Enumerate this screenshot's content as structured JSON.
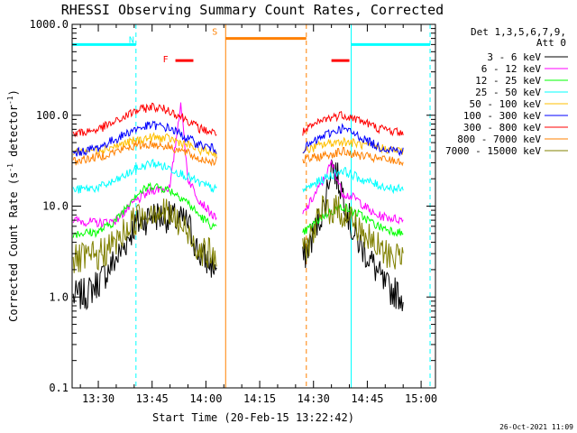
{
  "chart_data": {
    "type": "line",
    "title": "RHESSI Observing Summary Count Rates, Corrected",
    "xlabel": "Start Time (20-Feb-15 13:22:42)",
    "ylabel_parts": {
      "main": "Corrected Count Rate (s",
      "sup1": "-1",
      "mid": " detector",
      "sup2": "-1",
      "end": ")"
    },
    "y_scale": "log",
    "ylim": [
      0.1,
      1000.0
    ],
    "xlim": [
      "13:22:42",
      "15:04:00"
    ],
    "x_ticks": [
      "13:30",
      "13:45",
      "14:00",
      "14:15",
      "14:30",
      "14:45",
      "15:00"
    ],
    "y_ticks": [
      "0.1",
      "1.0",
      "10.0",
      "100.0",
      "1000.0"
    ],
    "legend": {
      "placement": "top-right",
      "header_line1": "Det 1,3,5,6,7,9,",
      "header_line2": "Att 0"
    },
    "series": [
      {
        "name": "3 - 6 keV",
        "color": "#000000",
        "points": [
          [
            "13:23",
            1.0
          ],
          [
            "13:27",
            1.1
          ],
          [
            "13:31",
            1.6
          ],
          [
            "13:36",
            3.0
          ],
          [
            "13:40",
            6.0
          ],
          [
            "13:45",
            8.0
          ],
          [
            "13:50",
            7.5
          ],
          [
            "13:55",
            6.5
          ],
          [
            "13:58",
            3.0
          ],
          [
            "14:03",
            2.0
          ],
          [
            "14:27",
            2.5
          ],
          [
            "14:33",
            10.0
          ],
          [
            "14:35",
            30.0
          ],
          [
            "14:38",
            15.0
          ],
          [
            "14:41",
            5.0
          ],
          [
            "14:46",
            2.5
          ],
          [
            "14:50",
            1.3
          ],
          [
            "14:55",
            1.0
          ]
        ]
      },
      {
        "name": "6 - 12 keV",
        "color": "#ff00ff",
        "points": [
          [
            "13:23",
            7.0
          ],
          [
            "13:30",
            6.5
          ],
          [
            "13:35",
            7.0
          ],
          [
            "13:40",
            11.0
          ],
          [
            "13:45",
            15.0
          ],
          [
            "13:50",
            16.0
          ],
          [
            "13:53",
            140.0
          ],
          [
            "13:55",
            20.0
          ],
          [
            "13:58",
            12.0
          ],
          [
            "14:03",
            7.0
          ],
          [
            "14:27",
            8.0
          ],
          [
            "14:33",
            20.0
          ],
          [
            "14:35",
            30.0
          ],
          [
            "14:38",
            14.0
          ],
          [
            "14:42",
            12.0
          ],
          [
            "14:47",
            8.0
          ],
          [
            "14:55",
            7.0
          ]
        ]
      },
      {
        "name": "12 - 25 keV",
        "color": "#00ff00",
        "points": [
          [
            "13:23",
            5.0
          ],
          [
            "13:30",
            5.2
          ],
          [
            "13:35",
            7.0
          ],
          [
            "13:40",
            13.0
          ],
          [
            "13:45",
            17.0
          ],
          [
            "13:50",
            15.0
          ],
          [
            "13:54",
            12.0
          ],
          [
            "13:58",
            8.0
          ],
          [
            "14:03",
            5.5
          ],
          [
            "14:27",
            5.0
          ],
          [
            "14:33",
            8.0
          ],
          [
            "14:38",
            10.0
          ],
          [
            "14:43",
            8.0
          ],
          [
            "14:48",
            6.0
          ],
          [
            "14:55",
            5.0
          ]
        ]
      },
      {
        "name": "25 - 50 keV",
        "color": "#00ffff",
        "points": [
          [
            "13:23",
            15.0
          ],
          [
            "13:30",
            16.0
          ],
          [
            "13:35",
            19.0
          ],
          [
            "13:40",
            25.0
          ],
          [
            "13:45",
            30.0
          ],
          [
            "13:50",
            26.0
          ],
          [
            "13:54",
            22.0
          ],
          [
            "13:58",
            18.0
          ],
          [
            "14:03",
            15.0
          ],
          [
            "14:27",
            15.0
          ],
          [
            "14:33",
            20.0
          ],
          [
            "14:38",
            25.0
          ],
          [
            "14:43",
            20.0
          ],
          [
            "14:48",
            17.0
          ],
          [
            "14:55",
            15.0
          ]
        ]
      },
      {
        "name": "50 - 100 keV",
        "color": "#ffbf00",
        "points": [
          [
            "13:23",
            40.0
          ],
          [
            "13:30",
            42.0
          ],
          [
            "13:35",
            46.0
          ],
          [
            "13:40",
            52.0
          ],
          [
            "13:45",
            57.0
          ],
          [
            "13:50",
            55.0
          ],
          [
            "13:55",
            47.0
          ],
          [
            "13:58",
            42.0
          ],
          [
            "14:03",
            38.0
          ],
          [
            "14:27",
            40.0
          ],
          [
            "14:33",
            48.0
          ],
          [
            "14:38",
            52.0
          ],
          [
            "14:43",
            48.0
          ],
          [
            "14:48",
            44.0
          ],
          [
            "14:55",
            40.0
          ]
        ]
      },
      {
        "name": "100 - 300 keV",
        "color": "#0000ff",
        "points": [
          [
            "13:23",
            38.0
          ],
          [
            "13:30",
            44.0
          ],
          [
            "13:35",
            55.0
          ],
          [
            "13:40",
            70.0
          ],
          [
            "13:45",
            78.0
          ],
          [
            "13:50",
            72.0
          ],
          [
            "13:55",
            55.0
          ],
          [
            "13:58",
            48.0
          ],
          [
            "14:03",
            42.0
          ],
          [
            "14:27",
            42.0
          ],
          [
            "14:33",
            60.0
          ],
          [
            "14:38",
            72.0
          ],
          [
            "14:43",
            58.0
          ],
          [
            "14:48",
            45.0
          ],
          [
            "14:55",
            40.0
          ]
        ]
      },
      {
        "name": "300 - 800 keV",
        "color": "#ff0000",
        "points": [
          [
            "13:23",
            62.0
          ],
          [
            "13:30",
            70.0
          ],
          [
            "13:35",
            85.0
          ],
          [
            "13:40",
            110.0
          ],
          [
            "13:45",
            125.0
          ],
          [
            "13:50",
            112.0
          ],
          [
            "13:55",
            88.0
          ],
          [
            "13:58",
            72.0
          ],
          [
            "14:03",
            63.0
          ],
          [
            "14:27",
            65.0
          ],
          [
            "14:33",
            90.0
          ],
          [
            "14:38",
            102.0
          ],
          [
            "14:43",
            88.0
          ],
          [
            "14:48",
            72.0
          ],
          [
            "14:55",
            64.0
          ]
        ]
      },
      {
        "name": "800 - 7000 keV",
        "color": "#ff8000",
        "points": [
          [
            "13:23",
            31.0
          ],
          [
            "13:30",
            35.0
          ],
          [
            "13:35",
            40.0
          ],
          [
            "13:40",
            46.0
          ],
          [
            "13:45",
            48.0
          ],
          [
            "13:50",
            45.0
          ],
          [
            "13:55",
            38.0
          ],
          [
            "13:58",
            33.0
          ],
          [
            "14:03",
            31.0
          ],
          [
            "14:27",
            32.0
          ],
          [
            "14:33",
            36.0
          ],
          [
            "14:38",
            40.0
          ],
          [
            "14:43",
            36.0
          ],
          [
            "14:48",
            33.0
          ],
          [
            "14:55",
            31.0
          ]
        ]
      },
      {
        "name": "7000 - 15000 keV",
        "color": "#808000",
        "points": [
          [
            "13:23",
            2.5
          ],
          [
            "13:30",
            2.8
          ],
          [
            "13:35",
            4.0
          ],
          [
            "13:40",
            7.0
          ],
          [
            "13:45",
            9.5
          ],
          [
            "13:50",
            8.0
          ],
          [
            "13:55",
            5.0
          ],
          [
            "13:58",
            3.5
          ],
          [
            "14:03",
            2.6
          ],
          [
            "14:27",
            3.0
          ],
          [
            "14:33",
            9.5
          ],
          [
            "14:37",
            9.0
          ],
          [
            "14:41",
            7.0
          ],
          [
            "14:46",
            4.0
          ],
          [
            "14:50",
            3.0
          ],
          [
            "14:55",
            2.8
          ]
        ]
      }
    ],
    "annotations": {
      "night_bars": {
        "label": "N",
        "color": "#00ffff",
        "intervals": [
          [
            "13:22:42",
            "13:40:30"
          ],
          [
            "14:40:30",
            "15:02:30"
          ]
        ],
        "y": 600.0
      },
      "flare_bars": {
        "label": "F",
        "color": "#ff0000",
        "intervals": [
          [
            "13:51:30",
            "13:56:30"
          ],
          [
            "14:35:00",
            "14:40:00"
          ]
        ],
        "y": 400.0
      },
      "saa_bars": {
        "label": "S",
        "color": "#ff8000",
        "intervals": [
          [
            "14:05:30",
            "14:28:00"
          ]
        ],
        "y": 700.0
      },
      "vertical_lines": [
        {
          "t": "13:22:42",
          "color": "#00ffff",
          "style": "solid"
        },
        {
          "t": "13:40:30",
          "color": "#00ffff",
          "style": "dashed"
        },
        {
          "t": "14:05:30",
          "color": "#ff8000",
          "style": "solid"
        },
        {
          "t": "14:28:00",
          "color": "#ff8000",
          "style": "dashed"
        },
        {
          "t": "14:40:30",
          "color": "#00ffff",
          "style": "solid"
        },
        {
          "t": "15:02:30",
          "color": "#00ffff",
          "style": "dashed"
        }
      ]
    }
  },
  "footer_date": "26-Oct-2021 11:09"
}
